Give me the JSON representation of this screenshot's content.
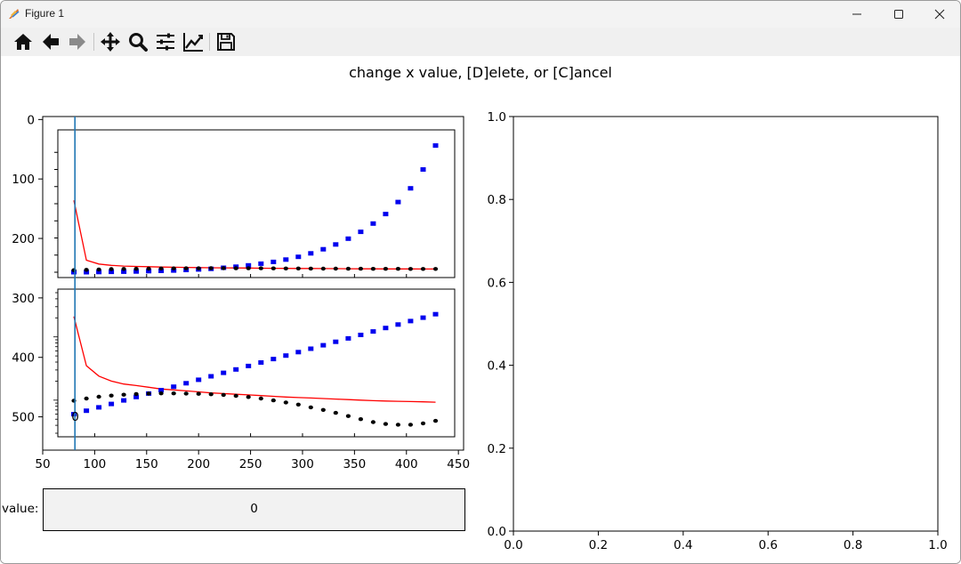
{
  "window": {
    "title": "Figure 1"
  },
  "toolbar": {
    "buttons": [
      {
        "name": "home",
        "icon": "home-icon"
      },
      {
        "name": "back",
        "icon": "arrow-left-icon"
      },
      {
        "name": "forward",
        "icon": "arrow-right-icon"
      },
      {
        "name": "pan",
        "icon": "move-icon"
      },
      {
        "name": "zoom",
        "icon": "magnifier-icon"
      },
      {
        "name": "subplots",
        "icon": "sliders-icon"
      },
      {
        "name": "edit-axis",
        "icon": "line-chart-icon"
      },
      {
        "name": "save",
        "icon": "floppy-disk-icon"
      }
    ]
  },
  "figure": {
    "suptitle": "change x value, [D]elete, or [C]ancel",
    "textbox": {
      "label": "value:",
      "value": "0"
    },
    "cursor_label": "0"
  },
  "colors": {
    "red_line": "#ff0000",
    "blue_points": "#0000ee",
    "black_points": "#000000",
    "cursor": "#1f77b4"
  },
  "chart_data": [
    {
      "type": "line",
      "axis": "main",
      "title": "",
      "xlabel": "",
      "ylabel": "",
      "xlim": [
        50,
        455
      ],
      "ylim": [
        556,
        -5
      ],
      "y_inverted": true,
      "xticks": [
        50,
        100,
        150,
        200,
        250,
        300,
        350,
        400,
        450
      ],
      "yticks": [
        0,
        100,
        200,
        300,
        400,
        500
      ],
      "vertical_cursor_x": 81,
      "cursor_label": "0"
    },
    {
      "type": "scatter",
      "axis": "inset-top",
      "x": [
        80,
        92,
        104,
        116,
        128,
        140,
        152,
        164,
        176,
        188,
        200,
        212,
        224,
        236,
        248,
        260,
        272,
        284,
        296,
        308,
        320,
        332,
        344,
        356,
        368,
        380,
        392,
        404,
        416,
        428
      ],
      "series": [
        {
          "name": "",
          "style": "line",
          "color": "#ff0000",
          "values": [
            0.21,
            0.035,
            0.024,
            0.02,
            0.018,
            0.017,
            0.016,
            0.015,
            0.0145,
            0.014,
            0.0135,
            0.013,
            0.0127,
            0.0124,
            0.0121,
            0.0118,
            0.0115,
            0.0112,
            0.011,
            0.0108,
            0.0106,
            0.0104,
            0.0102,
            0.01,
            0.0098,
            0.0097,
            0.0096,
            0.0095,
            0.0094,
            0.0093
          ]
        },
        {
          "name": "",
          "style": "square-marker",
          "color": "#0000ee",
          "values": [
            0,
            0,
            0.0005,
            0.001,
            0.0015,
            0.002,
            0.003,
            0.004,
            0.005,
            0.0065,
            0.008,
            0.01,
            0.013,
            0.016,
            0.02,
            0.025,
            0.03,
            0.037,
            0.045,
            0.055,
            0.067,
            0.081,
            0.098,
            0.118,
            0.142,
            0.17,
            0.205,
            0.245,
            0.3,
            0.37
          ]
        },
        {
          "name": "",
          "style": "round-marker",
          "color": "#000000",
          "values": [
            0.006,
            0.007,
            0.008,
            0.009,
            0.0095,
            0.01,
            0.0105,
            0.011,
            0.0112,
            0.0114,
            0.0115,
            0.0116,
            0.0116,
            0.0115,
            0.0114,
            0.0113,
            0.0112,
            0.011,
            0.0109,
            0.0107,
            0.0105,
            0.0104,
            0.0102,
            0.0101,
            0.01,
            0.0099,
            0.0098,
            0.0097,
            0.0096,
            0.0095
          ]
        }
      ]
    },
    {
      "type": "scatter",
      "axis": "inset-bottom",
      "y_scale": "log",
      "x": [
        80,
        92,
        104,
        116,
        128,
        140,
        152,
        164,
        176,
        188,
        200,
        212,
        224,
        236,
        248,
        260,
        272,
        284,
        296,
        308,
        320,
        332,
        344,
        356,
        368,
        380,
        392,
        404,
        416,
        428
      ],
      "series": [
        {
          "name": "",
          "style": "line",
          "color": "#ff0000",
          "values": [
            0.21,
            0.035,
            0.024,
            0.02,
            0.018,
            0.017,
            0.016,
            0.015,
            0.0145,
            0.014,
            0.0135,
            0.013,
            0.0127,
            0.0124,
            0.0121,
            0.0118,
            0.0115,
            0.0112,
            0.011,
            0.0108,
            0.0106,
            0.0104,
            0.0102,
            0.01,
            0.0098,
            0.0097,
            0.0096,
            0.0095,
            0.0094,
            0.0093
          ]
        },
        {
          "name": "",
          "style": "square-marker",
          "color": "#0000ee",
          "values": [
            0.006,
            0.0068,
            0.0077,
            0.0087,
            0.0099,
            0.0112,
            0.0127,
            0.0144,
            0.0163,
            0.0185,
            0.021,
            0.0238,
            0.027,
            0.0306,
            0.0347,
            0.0393,
            0.0446,
            0.0506,
            0.0574,
            0.065,
            0.0737,
            0.0836,
            0.0948,
            0.1075,
            0.1219,
            0.1382,
            0.1567,
            0.1777,
            0.2015,
            0.2285
          ]
        },
        {
          "name": "",
          "style": "round-marker",
          "color": "#000000",
          "values": [
            0.0098,
            0.0106,
            0.0113,
            0.0118,
            0.0122,
            0.0125,
            0.0127,
            0.0128,
            0.0128,
            0.0127,
            0.0126,
            0.0124,
            0.0121,
            0.0117,
            0.0112,
            0.0106,
            0.0099,
            0.0092,
            0.0085,
            0.0077,
            0.007,
            0.0063,
            0.0056,
            0.005,
            0.0045,
            0.0042,
            0.0041,
            0.0041,
            0.0043,
            0.0047
          ]
        }
      ]
    },
    {
      "type": "line",
      "axis": "right-empty",
      "title": "",
      "xlabel": "",
      "ylabel": "",
      "xlim": [
        0,
        1
      ],
      "ylim": [
        0,
        1
      ],
      "xticks": [
        0.0,
        0.2,
        0.4,
        0.6,
        0.8,
        1.0
      ],
      "yticks": [
        0.0,
        0.2,
        0.4,
        0.6,
        0.8,
        1.0
      ],
      "series": []
    }
  ]
}
